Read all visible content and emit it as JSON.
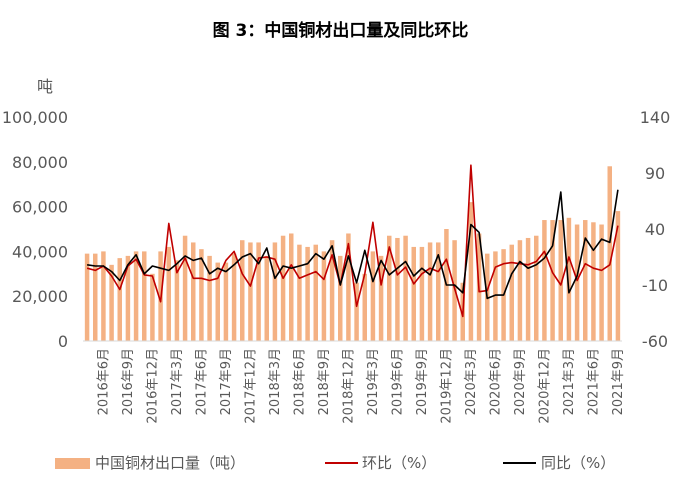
{
  "chart_data": {
    "type": "bar",
    "title": "图 3：中国铜材出口量及同比环比",
    "left_axis_unit": "吨",
    "ylim_left": [
      0,
      100000
    ],
    "yticks_left": [
      "0",
      "20,000",
      "40,000",
      "60,000",
      "80,000",
      "100,000"
    ],
    "ylim_right": [
      -60,
      140
    ],
    "yticks_right": [
      "-60",
      "-10",
      "40",
      "90",
      "140"
    ],
    "categories": [
      "2016年4月",
      "2016年5月",
      "2016年6月",
      "2016年7月",
      "2016年8月",
      "2016年9月",
      "2016年10月",
      "2016年11月",
      "2016年12月",
      "2017年1月",
      "2017年2月",
      "2017年3月",
      "2017年4月",
      "2017年5月",
      "2017年6月",
      "2017年7月",
      "2017年8月",
      "2017年9月",
      "2017年10月",
      "2017年11月",
      "2017年12月",
      "2018年1月",
      "2018年2月",
      "2018年3月",
      "2018年4月",
      "2018年5月",
      "2018年6月",
      "2018年7月",
      "2018年8月",
      "2018年9月",
      "2018年10月",
      "2018年11月",
      "2018年12月",
      "2019年1月",
      "2019年2月",
      "2019年3月",
      "2019年4月",
      "2019年5月",
      "2019年6月",
      "2019年7月",
      "2019年8月",
      "2019年9月",
      "2019年10月",
      "2019年11月",
      "2019年12月",
      "2020年1月",
      "2020年2月",
      "2020年3月",
      "2020年4月",
      "2020年5月",
      "2020年6月",
      "2020年7月",
      "2020年8月",
      "2020年9月",
      "2020年10月",
      "2020年11月",
      "2020年12月",
      "2021年1月",
      "2021年2月",
      "2021年3月",
      "2021年4月",
      "2021年5月",
      "2021年6月",
      "2021年7月",
      "2021年8月",
      "2021年9月"
    ],
    "x_tick_labels": [
      {
        "index": 2,
        "label": "2016年6月"
      },
      {
        "index": 5,
        "label": "2016年9月"
      },
      {
        "index": 8,
        "label": "2016年12月"
      },
      {
        "index": 11,
        "label": "2017年3月"
      },
      {
        "index": 14,
        "label": "2017年6月"
      },
      {
        "index": 17,
        "label": "2017年9月"
      },
      {
        "index": 20,
        "label": "2017年12月"
      },
      {
        "index": 23,
        "label": "2018年3月"
      },
      {
        "index": 26,
        "label": "2018年6月"
      },
      {
        "index": 29,
        "label": "2018年9月"
      },
      {
        "index": 32,
        "label": "2018年12月"
      },
      {
        "index": 35,
        "label": "2019年3月"
      },
      {
        "index": 38,
        "label": "2019年6月"
      },
      {
        "index": 41,
        "label": "2019年9月"
      },
      {
        "index": 44,
        "label": "2019年12月"
      },
      {
        "index": 47,
        "label": "2020年3月"
      },
      {
        "index": 50,
        "label": "2020年6月"
      },
      {
        "index": 53,
        "label": "2020年9月"
      },
      {
        "index": 56,
        "label": "2020年12月"
      },
      {
        "index": 59,
        "label": "2021年3月"
      },
      {
        "index": 62,
        "label": "2021年6月"
      },
      {
        "index": 65,
        "label": "2021年9月"
      }
    ],
    "series": [
      {
        "name": "中国铜材出口量（吨）",
        "kind": "bar",
        "axis": "left",
        "color": "#F4B183",
        "values": [
          39000,
          39000,
          40000,
          34000,
          37000,
          38000,
          40000,
          40000,
          30000,
          40000,
          42000,
          36000,
          47000,
          44000,
          41000,
          38000,
          35000,
          35000,
          39000,
          45000,
          44000,
          44000,
          38000,
          44000,
          47000,
          48000,
          43000,
          42000,
          43000,
          40000,
          45000,
          38000,
          48000,
          26000,
          30000,
          40000,
          38000,
          47000,
          46000,
          47000,
          42000,
          42000,
          44000,
          44000,
          50000,
          45000,
          26000,
          62000,
          48000,
          39000,
          40000,
          41000,
          43000,
          45000,
          46000,
          47000,
          54000,
          54000,
          54000,
          55000,
          52000,
          54000,
          53000,
          52000,
          78000,
          58000
        ]
      },
      {
        "name": "环比（%）",
        "kind": "line",
        "axis": "right",
        "color": "#C00000",
        "values": [
          5,
          3,
          7,
          -2,
          -14,
          7,
          13,
          -1,
          -2,
          -25,
          45,
          1,
          14,
          -4,
          -4,
          -6,
          -4,
          12,
          20,
          0,
          -11,
          14,
          15,
          13,
          -4,
          8,
          -4,
          -1,
          2,
          -5,
          17,
          -10,
          27,
          -29,
          0,
          46,
          -10,
          24,
          -1,
          6,
          -9,
          0,
          5,
          2,
          13,
          -13,
          -38,
          97,
          -16,
          -15,
          6,
          9,
          10,
          9,
          8,
          11,
          20,
          1,
          -10,
          15,
          -6,
          9,
          5,
          3,
          8,
          43
        ]
      },
      {
        "name": "同比（%）",
        "kind": "line",
        "axis": "right",
        "color": "#000000",
        "values": [
          8,
          7,
          7,
          2,
          -6,
          8,
          17,
          0,
          7,
          5,
          3,
          9,
          16,
          12,
          14,
          0,
          5,
          2,
          8,
          15,
          18,
          9,
          23,
          -4,
          7,
          5,
          7,
          9,
          18,
          13,
          25,
          -10,
          16,
          -8,
          21,
          -7,
          12,
          -1,
          5,
          11,
          -2,
          5,
          -1,
          17,
          -10,
          -10,
          -17,
          44,
          37,
          -22,
          -19,
          -19,
          0,
          11,
          5,
          8,
          14,
          25,
          73,
          -17,
          -2,
          32,
          21,
          31,
          28,
          75
        ]
      }
    ],
    "legend": {
      "position": "bottom",
      "items": [
        "中国铜材出口量（吨）",
        "环比（%）",
        "同比（%）"
      ]
    },
    "grid": false
  }
}
